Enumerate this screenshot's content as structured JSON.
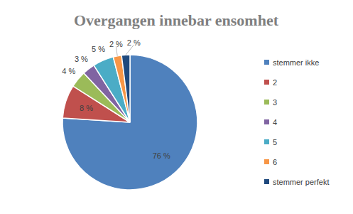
{
  "chart_data": {
    "type": "pie",
    "title": "Overgangen innebar ensomhet",
    "categories": [
      "stemmer ikke",
      "2",
      "3",
      "4",
      "5",
      "6",
      "stemmer perfekt"
    ],
    "values": [
      76,
      8,
      4,
      3,
      5,
      2,
      2
    ],
    "value_labels": [
      "76 %",
      "8 %",
      "4 %",
      "3 %",
      "5 %",
      "2 %",
      "2 %"
    ],
    "colors": [
      "#4f81bd",
      "#c0504d",
      "#9bbb59",
      "#8064a2",
      "#4bacc6",
      "#f79646",
      "#1f497d"
    ],
    "data_labels": true,
    "legend": "right"
  }
}
